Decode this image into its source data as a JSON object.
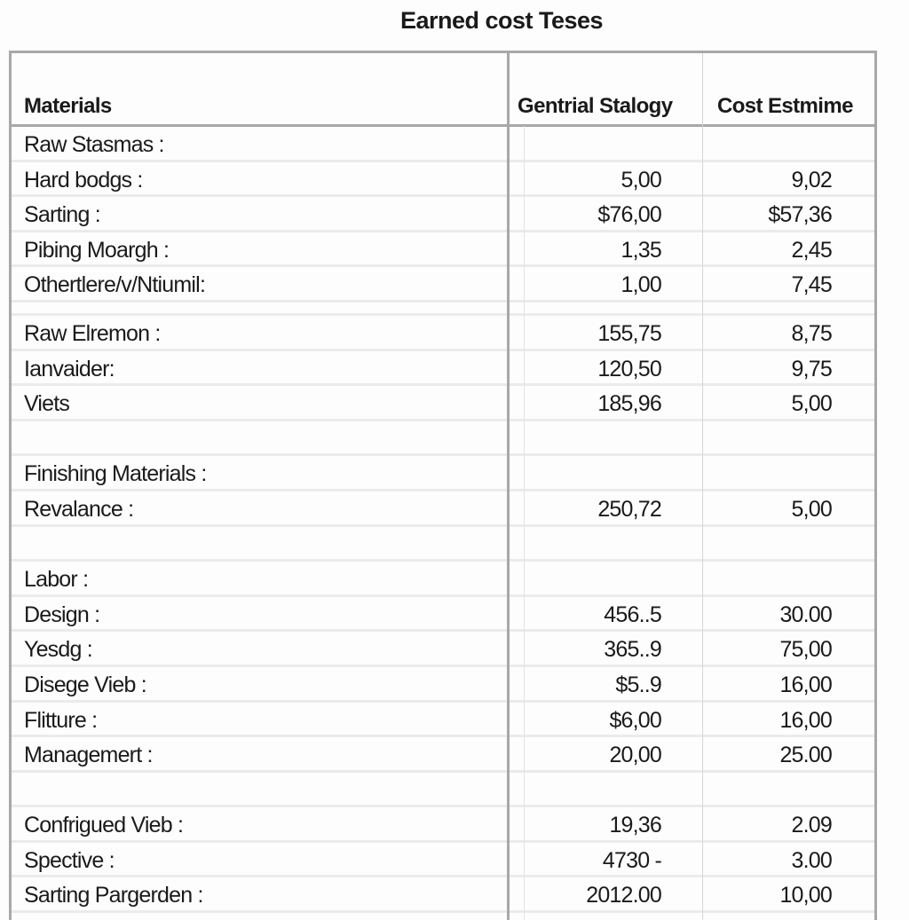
{
  "title": "Earned cost Teses",
  "columns": [
    "Materials",
    "Gentrial Stalogy",
    "Cost Estmime"
  ],
  "rows": [
    {
      "label": "Raw Stasmas :",
      "v1": "",
      "v2": ""
    },
    {
      "label": "Hard bodgs :",
      "v1": "5,00",
      "v2": "9,02"
    },
    {
      "label": "Sarting :",
      "v1": "$76,00",
      "v2": "$57,36"
    },
    {
      "label": "Pibing Moargh :",
      "v1": "1,35",
      "v2": "2,45"
    },
    {
      "label": "Othertlere/v/Ntiumil:",
      "v1": "1,00",
      "v2": "7,45"
    },
    {
      "short": true,
      "label": "",
      "v1": "",
      "v2": ""
    },
    {
      "label": "Raw Elremon :",
      "v1": "155,75",
      "v2": "8,75"
    },
    {
      "label": "Ianvaider:",
      "v1": "120,50",
      "v2": "9,75"
    },
    {
      "label": "Viets",
      "v1": "185,96",
      "v2": "5,00"
    },
    {
      "label": "",
      "v1": "",
      "v2": ""
    },
    {
      "label": "Finishing Materials :",
      "v1": "",
      "v2": ""
    },
    {
      "label": "Revalance :",
      "v1": "250,72",
      "v2": "5,00"
    },
    {
      "label": "",
      "v1": "",
      "v2": ""
    },
    {
      "label": "Labor :",
      "v1": "",
      "v2": ""
    },
    {
      "label": "Design :",
      "v1": "456..5",
      "v2": "30.00"
    },
    {
      "label": "Yesdg :",
      "v1": "365..9",
      "v2": "75,00"
    },
    {
      "label": "Disege Vieb :",
      "v1": "$5..9",
      "v2": "16,00"
    },
    {
      "label": "Flitture :",
      "v1": "$6,00",
      "v2": "16,00"
    },
    {
      "label": "Managemert :",
      "v1": "20,00",
      "v2": "25.00"
    },
    {
      "label": "",
      "v1": "",
      "v2": ""
    },
    {
      "label": "Confrigued Vieb :",
      "v1": "19,36",
      "v2": "2.09"
    },
    {
      "label": "Spective :",
      "v1": "4730 -",
      "v2": "3.00"
    },
    {
      "label": "Sarting Pargerden :",
      "v1": "2012.00",
      "v2": "10,00"
    }
  ]
}
